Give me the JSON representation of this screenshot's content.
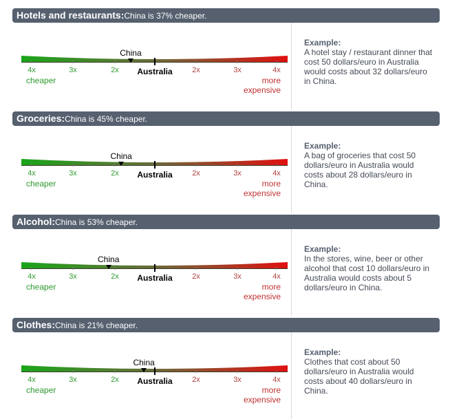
{
  "scale": {
    "left_ticks": [
      "4x",
      "3x",
      "2x"
    ],
    "right_ticks": [
      "2x",
      "3x",
      "4x"
    ],
    "center_label": "Australia",
    "cheaper_label": "cheaper",
    "more_label_line1": "more",
    "more_label_line2": "expensive",
    "marker_label": "China",
    "colors": {
      "cheap": "#1aa51a",
      "neutral": "#6b6b3a",
      "expensive": "#e01010"
    }
  },
  "sections": [
    {
      "category": "Hotels and restaurants:",
      "summary": "China is 37% cheaper.",
      "percent_cheaper": 37,
      "example_title": "Example:",
      "example_text": "A hotel stay / restaurant dinner that cost 50 dollars/euro in Australia would costs about 32 dollars/euro in China."
    },
    {
      "category": "Groceries:",
      "summary": "China is 45% cheaper.",
      "percent_cheaper": 45,
      "example_title": "Example:",
      "example_text": "A bag of groceries that cost 50 dollars/euro in Australia would costs about 28 dollars/euro in China."
    },
    {
      "category": "Alcohol:",
      "summary": "China is 53% cheaper.",
      "percent_cheaper": 53,
      "example_title": "Example:",
      "example_text": "In the stores, wine, beer or other alcohol that cost 10 dollars/euro in Australia would costs about 5 dollars/euro in China."
    },
    {
      "category": "Clothes:",
      "summary": "China is 21% cheaper.",
      "percent_cheaper": 21,
      "example_title": "Example:",
      "example_text": "Clothes that cost about 50 dollars/euro in Australia would costs about 40 dollars/euro in China."
    }
  ]
}
